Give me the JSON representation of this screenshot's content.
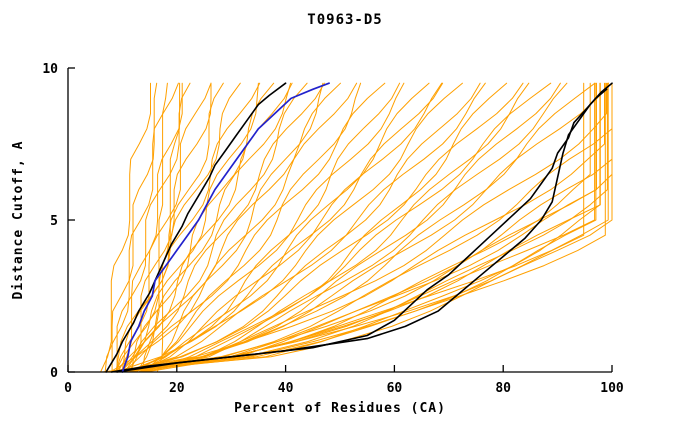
{
  "chart_data": {
    "type": "line",
    "title": "T0963-D5",
    "xlabel": "Percent of Residues (CA)",
    "ylabel": "Distance Cutoff, A",
    "xlim": [
      0,
      100
    ],
    "ylim": [
      0,
      10
    ],
    "xticks": [
      0,
      20,
      40,
      60,
      80,
      100
    ],
    "yticks": [
      0,
      5,
      10
    ],
    "grid": false,
    "legend": "none",
    "colors": {
      "ensemble": "#FFA000",
      "highlight_blue": "#2222CC",
      "highlight_black": "#000000",
      "axis": "#000000",
      "background": "#FFFFFF"
    },
    "highlight_series": [
      {
        "name": "black-model-left",
        "color": "#000000",
        "width": 1.6,
        "points": [
          [
            7,
            0
          ],
          [
            9,
            0.6
          ],
          [
            10,
            1
          ],
          [
            12,
            1.6
          ],
          [
            13,
            2
          ],
          [
            15,
            2.6
          ],
          [
            16,
            3
          ],
          [
            17,
            3.4
          ],
          [
            18,
            3.8
          ],
          [
            19,
            4.2
          ],
          [
            21,
            4.8
          ],
          [
            22,
            5.2
          ],
          [
            24,
            5.8
          ],
          [
            26,
            6.4
          ],
          [
            27,
            6.8
          ],
          [
            29,
            7.3
          ],
          [
            31,
            7.8
          ],
          [
            33,
            8.3
          ],
          [
            35,
            8.8
          ],
          [
            37,
            9.1
          ],
          [
            40,
            9.5
          ]
        ]
      },
      {
        "name": "black-model-right-a",
        "color": "#000000",
        "width": 1.6,
        "points": [
          [
            8,
            0
          ],
          [
            15,
            0.2
          ],
          [
            30,
            0.5
          ],
          [
            45,
            0.8
          ],
          [
            55,
            1.2
          ],
          [
            60,
            1.7
          ],
          [
            63,
            2.2
          ],
          [
            66,
            2.7
          ],
          [
            70,
            3.2
          ],
          [
            73,
            3.7
          ],
          [
            76,
            4.2
          ],
          [
            79,
            4.7
          ],
          [
            82,
            5.2
          ],
          [
            85,
            5.7
          ],
          [
            87,
            6.2
          ],
          [
            89,
            6.7
          ],
          [
            90,
            7.2
          ],
          [
            92,
            7.7
          ],
          [
            93,
            8.2
          ],
          [
            95,
            8.6
          ],
          [
            97,
            9.0
          ],
          [
            99,
            9.3
          ]
        ]
      },
      {
        "name": "black-model-right-b",
        "color": "#000000",
        "width": 1.6,
        "points": [
          [
            9,
            0
          ],
          [
            20,
            0.3
          ],
          [
            40,
            0.7
          ],
          [
            55,
            1.1
          ],
          [
            62,
            1.5
          ],
          [
            68,
            2.0
          ],
          [
            72,
            2.6
          ],
          [
            76,
            3.2
          ],
          [
            80,
            3.8
          ],
          [
            84,
            4.4
          ],
          [
            87,
            5.0
          ],
          [
            89,
            5.6
          ],
          [
            90,
            6.4
          ],
          [
            91,
            7.2
          ],
          [
            92,
            7.8
          ],
          [
            94,
            8.3
          ],
          [
            96,
            8.8
          ],
          [
            98,
            9.2
          ],
          [
            100,
            9.5
          ]
        ]
      },
      {
        "name": "blue-model",
        "color": "#2222CC",
        "width": 1.7,
        "points": [
          [
            10,
            0
          ],
          [
            11,
            0.5
          ],
          [
            11.5,
            1
          ],
          [
            13,
            1.5
          ],
          [
            14,
            2
          ],
          [
            15.5,
            2.5
          ],
          [
            16,
            3
          ],
          [
            18,
            3.5
          ],
          [
            20,
            4
          ],
          [
            22,
            4.5
          ],
          [
            24,
            5
          ],
          [
            25.5,
            5.5
          ],
          [
            27,
            6
          ],
          [
            29,
            6.5
          ],
          [
            31,
            7
          ],
          [
            33,
            7.5
          ],
          [
            35,
            8
          ],
          [
            38,
            8.5
          ],
          [
            41,
            9
          ],
          [
            45,
            9.3
          ],
          [
            48,
            9.5
          ]
        ]
      }
    ],
    "ensemble": {
      "name": "orange-models",
      "color": "#FFA000",
      "width": 1,
      "jitter_amp": 1.3,
      "curves": [
        {
          "x0": 6,
          "x1": 15,
          "y1": 9.5,
          "p": 1.15,
          "cap": false
        },
        {
          "x0": 7,
          "x1": 17,
          "y1": 9.5,
          "p": 1.0,
          "cap": false
        },
        {
          "x0": 8,
          "x1": 19,
          "y1": 9.5,
          "p": 1.2,
          "cap": false
        },
        {
          "x0": 9,
          "x1": 21,
          "y1": 9.5,
          "p": 0.95,
          "cap": false
        },
        {
          "x0": 8,
          "x1": 23,
          "y1": 9.5,
          "p": 1.1,
          "cap": false
        },
        {
          "x0": 10,
          "x1": 25,
          "y1": 9.5,
          "p": 1.0,
          "cap": false
        },
        {
          "x0": 11,
          "x1": 27,
          "y1": 9.5,
          "p": 1.15,
          "cap": false
        },
        {
          "x0": 9,
          "x1": 29,
          "y1": 9.5,
          "p": 0.9,
          "cap": false
        },
        {
          "x0": 15,
          "x1": 17,
          "y1": 9.5,
          "p": 1.0,
          "cap": false
        },
        {
          "x0": 16,
          "x1": 20,
          "y1": 9.5,
          "p": 1.3,
          "cap": false
        },
        {
          "x0": 8,
          "x1": 32,
          "y1": 9.5,
          "p": 0.95,
          "cap": false
        },
        {
          "x0": 10,
          "x1": 34,
          "y1": 9.5,
          "p": 1.05,
          "cap": false
        },
        {
          "x0": 9,
          "x1": 36,
          "y1": 9.5,
          "p": 0.85,
          "cap": false
        },
        {
          "x0": 11,
          "x1": 38,
          "y1": 9.5,
          "p": 1.0,
          "cap": false
        },
        {
          "x0": 10,
          "x1": 40,
          "y1": 9.5,
          "p": 0.9,
          "cap": false
        },
        {
          "x0": 12,
          "x1": 42,
          "y1": 9.5,
          "p": 1.1,
          "cap": false
        },
        {
          "x0": 9,
          "x1": 44,
          "y1": 9.5,
          "p": 0.8,
          "cap": false
        },
        {
          "x0": 11,
          "x1": 46,
          "y1": 9.5,
          "p": 0.95,
          "cap": false
        },
        {
          "x0": 13,
          "x1": 48,
          "y1": 9.5,
          "p": 0.85,
          "cap": false
        },
        {
          "x0": 10,
          "x1": 50,
          "y1": 9.5,
          "p": 0.9,
          "cap": false
        },
        {
          "x0": 9,
          "x1": 52,
          "y1": 9.5,
          "p": 0.8,
          "cap": false
        },
        {
          "x0": 11,
          "x1": 55,
          "y1": 9.5,
          "p": 0.75,
          "cap": false
        },
        {
          "x0": 10,
          "x1": 58,
          "y1": 9.5,
          "p": 0.85,
          "cap": false
        },
        {
          "x0": 12,
          "x1": 60,
          "y1": 9.5,
          "p": 0.7,
          "cap": false
        },
        {
          "x0": 11,
          "x1": 63,
          "y1": 9.5,
          "p": 0.8,
          "cap": false
        },
        {
          "x0": 13,
          "x1": 66,
          "y1": 9.5,
          "p": 0.75,
          "cap": false
        },
        {
          "x0": 10,
          "x1": 68,
          "y1": 9.5,
          "p": 0.7,
          "cap": false
        },
        {
          "x0": 12,
          "x1": 70,
          "y1": 9.5,
          "p": 0.8,
          "cap": false
        },
        {
          "x0": 11,
          "x1": 72,
          "y1": 9.5,
          "p": 0.7,
          "cap": false
        },
        {
          "x0": 12,
          "x1": 75,
          "y1": 9.5,
          "p": 0.65,
          "cap": false
        },
        {
          "x0": 10,
          "x1": 78,
          "y1": 9.5,
          "p": 0.7,
          "cap": false
        },
        {
          "x0": 13,
          "x1": 80,
          "y1": 9.5,
          "p": 0.6,
          "cap": false
        },
        {
          "x0": 11,
          "x1": 83,
          "y1": 9.5,
          "p": 0.68,
          "cap": false
        },
        {
          "x0": 12,
          "x1": 86,
          "y1": 9.5,
          "p": 0.62,
          "cap": false
        },
        {
          "x0": 14,
          "x1": 88,
          "y1": 9.5,
          "p": 0.7,
          "cap": false
        },
        {
          "x0": 11,
          "x1": 90,
          "y1": 9.5,
          "p": 0.6,
          "cap": false
        },
        {
          "x0": 13,
          "x1": 93,
          "y1": 9.5,
          "p": 0.65,
          "cap": false
        },
        {
          "x0": 12,
          "x1": 96,
          "y1": 9.5,
          "p": 0.6,
          "cap": false
        },
        {
          "x0": 10,
          "x1": 99,
          "y1": 9.5,
          "p": 0.62,
          "cap": false
        },
        {
          "x0": 6,
          "x1": 99.4,
          "y1": 4.6,
          "p": 0.55,
          "cap": true
        },
        {
          "x0": 7,
          "x1": 99.6,
          "y1": 4.8,
          "p": 0.6,
          "cap": true
        },
        {
          "x0": 8,
          "x1": 99.8,
          "y1": 5.0,
          "p": 0.5,
          "cap": true
        },
        {
          "x0": 9,
          "x1": 100,
          "y1": 5.0,
          "p": 0.65,
          "cap": true
        },
        {
          "x0": 10,
          "x1": 99.5,
          "y1": 5.2,
          "p": 0.55,
          "cap": true
        },
        {
          "x0": 7,
          "x1": 99.7,
          "y1": 5.4,
          "p": 0.6,
          "cap": true
        },
        {
          "x0": 8,
          "x1": 99.9,
          "y1": 5.6,
          "p": 0.5,
          "cap": true
        },
        {
          "x0": 11,
          "x1": 100,
          "y1": 5.8,
          "p": 0.6,
          "cap": true
        },
        {
          "x0": 9,
          "x1": 99.6,
          "y1": 6.0,
          "p": 0.55,
          "cap": true
        },
        {
          "x0": 12,
          "x1": 99.8,
          "y1": 6.2,
          "p": 0.65,
          "cap": true
        },
        {
          "x0": 10,
          "x1": 100,
          "y1": 6.5,
          "p": 0.6,
          "cap": true
        },
        {
          "x0": 8,
          "x1": 99.5,
          "y1": 6.8,
          "p": 0.55,
          "cap": true
        },
        {
          "x0": 13,
          "x1": 99.9,
          "y1": 7.0,
          "p": 0.6,
          "cap": true
        },
        {
          "x0": 9,
          "x1": 99.7,
          "y1": 7.5,
          "p": 0.65,
          "cap": true
        },
        {
          "x0": 11,
          "x1": 100,
          "y1": 8.0,
          "p": 0.6,
          "cap": true
        },
        {
          "x0": 10,
          "x1": 99.8,
          "y1": 8.5,
          "p": 0.65,
          "cap": true
        }
      ]
    }
  }
}
